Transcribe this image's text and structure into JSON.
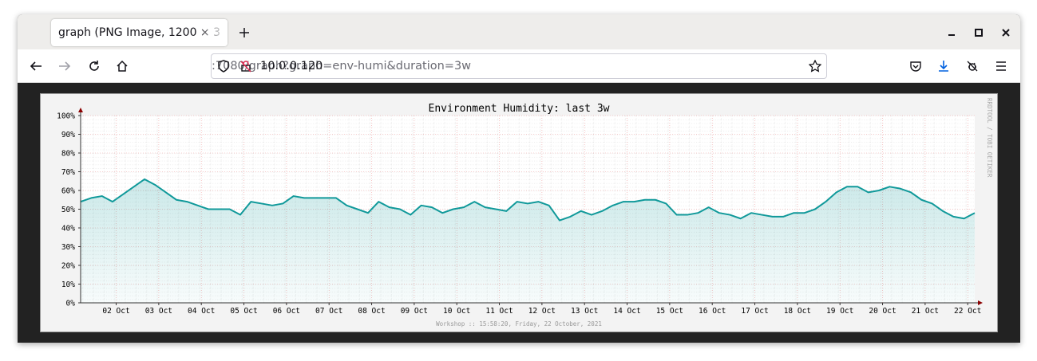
{
  "browser": {
    "tab_title": "graph (PNG Image, 1200 × 3",
    "url_host": "10.0.0.120",
    "url_path": ":7080/graph?graph=env-humi&duration=3w"
  },
  "chart_data": {
    "type": "area",
    "title": "Environment Humidity: last 3w",
    "footer": "Workshop :: 15:58:20, Friday, 22 October, 2021",
    "side_text": "RRDTOOL / TOBI OETIKER",
    "color": "#10999a",
    "grid": true,
    "xlim": [
      0,
      21
    ],
    "ylim": [
      0,
      100
    ],
    "xticks": [
      {
        "value": 0.835,
        "label": "02 Oct"
      },
      {
        "value": 1.835,
        "label": "03 Oct"
      },
      {
        "value": 2.835,
        "label": "04 Oct"
      },
      {
        "value": 3.835,
        "label": "05 Oct"
      },
      {
        "value": 4.835,
        "label": "06 Oct"
      },
      {
        "value": 5.835,
        "label": "07 Oct"
      },
      {
        "value": 6.835,
        "label": "08 Oct"
      },
      {
        "value": 7.835,
        "label": "09 Oct"
      },
      {
        "value": 8.835,
        "label": "10 Oct"
      },
      {
        "value": 9.835,
        "label": "11 Oct"
      },
      {
        "value": 10.835,
        "label": "12 Oct"
      },
      {
        "value": 11.835,
        "label": "13 Oct"
      },
      {
        "value": 12.835,
        "label": "14 Oct"
      },
      {
        "value": 13.835,
        "label": "15 Oct"
      },
      {
        "value": 14.835,
        "label": "16 Oct"
      },
      {
        "value": 15.835,
        "label": "17 Oct"
      },
      {
        "value": 16.835,
        "label": "18 Oct"
      },
      {
        "value": 17.835,
        "label": "19 Oct"
      },
      {
        "value": 18.835,
        "label": "20 Oct"
      },
      {
        "value": 19.835,
        "label": "21 Oct"
      },
      {
        "value": 20.835,
        "label": "22 Oct"
      }
    ],
    "yticks": [
      {
        "value": 0,
        "label": "0%"
      },
      {
        "value": 10,
        "label": "10%"
      },
      {
        "value": 20,
        "label": "20%"
      },
      {
        "value": 30,
        "label": "30%"
      },
      {
        "value": 40,
        "label": "40%"
      },
      {
        "value": 50,
        "label": "50%"
      },
      {
        "value": 60,
        "label": "60%"
      },
      {
        "value": 70,
        "label": "70%"
      },
      {
        "value": 80,
        "label": "80%"
      },
      {
        "value": 90,
        "label": "90%"
      },
      {
        "value": 100,
        "label": "100%"
      }
    ],
    "x": [
      0,
      0.25,
      0.5,
      0.75,
      1,
      1.25,
      1.5,
      1.75,
      2,
      2.25,
      2.5,
      2.75,
      3,
      3.25,
      3.5,
      3.75,
      4,
      4.25,
      4.5,
      4.75,
      5,
      5.25,
      5.5,
      5.75,
      6,
      6.25,
      6.5,
      6.75,
      7,
      7.25,
      7.5,
      7.75,
      8,
      8.25,
      8.5,
      8.75,
      9,
      9.25,
      9.5,
      9.75,
      10,
      10.25,
      10.5,
      10.75,
      11,
      11.25,
      11.5,
      11.75,
      12,
      12.25,
      12.5,
      12.75,
      13,
      13.25,
      13.5,
      13.75,
      14,
      14.25,
      14.5,
      14.75,
      15,
      15.25,
      15.5,
      15.75,
      16,
      16.25,
      16.5,
      16.75,
      17,
      17.25,
      17.5,
      17.75,
      18,
      18.25,
      18.5,
      18.75,
      19,
      19.25,
      19.5,
      19.75,
      20,
      20.25,
      20.5,
      20.75,
      21
    ],
    "values": [
      54,
      56,
      57,
      54,
      58,
      62,
      66,
      63,
      59,
      55,
      54,
      52,
      50,
      50,
      50,
      47,
      54,
      53,
      52,
      53,
      57,
      56,
      56,
      56,
      56,
      52,
      50,
      48,
      54,
      51,
      50,
      47,
      52,
      51,
      48,
      50,
      51,
      54,
      51,
      50,
      49,
      54,
      53,
      54,
      52,
      44,
      46,
      49,
      47,
      49,
      52,
      54,
      54,
      55,
      55,
      53,
      47,
      47,
      48,
      51,
      48,
      47,
      45,
      48,
      47,
      46,
      46,
      48,
      48,
      50,
      54,
      59,
      62,
      62,
      59,
      60,
      62,
      61,
      59,
      55,
      53,
      49,
      46,
      45,
      48
    ]
  }
}
